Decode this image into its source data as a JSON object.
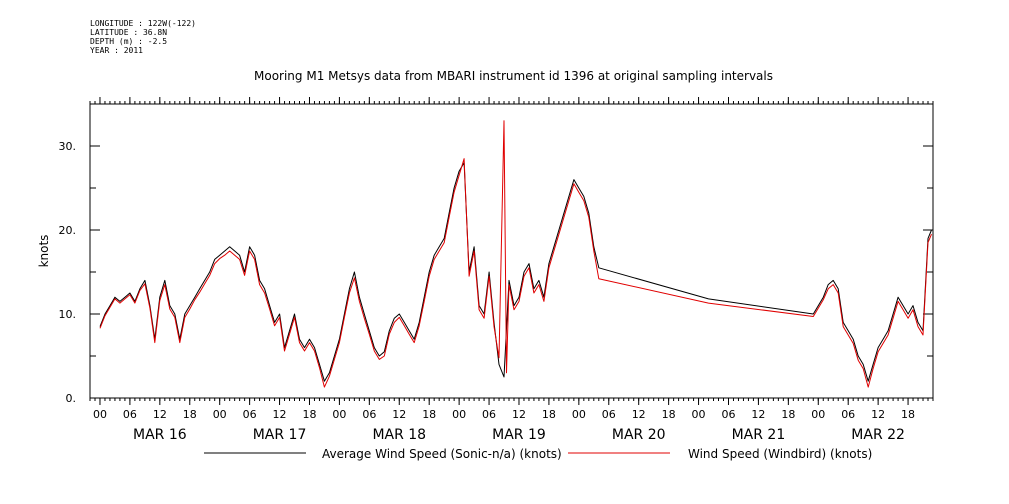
{
  "metadata": {
    "longitude": "LONGITUDE : 122W(-122)",
    "latitude": "LATITUDE : 36.8N",
    "depth": "DEPTH (m) : -2.5",
    "year": "YEAR : 2011"
  },
  "chart_data": {
    "type": "line",
    "title": "Mooring M1 Metsys data from MBARI instrument id 1396 at original sampling intervals",
    "ylabel": "knots",
    "xlabel": "",
    "ylim": [
      0,
      35
    ],
    "xlim_hours": [
      -2,
      167
    ],
    "yticks": [
      0,
      10,
      20,
      30
    ],
    "ytick_labels": [
      "0.",
      "10.",
      "20.",
      "30."
    ],
    "hour_ticks": [
      "00",
      "06",
      "12",
      "18",
      "00",
      "06",
      "12",
      "18",
      "00",
      "06",
      "12",
      "18",
      "00",
      "06",
      "12",
      "18",
      "00",
      "06",
      "12",
      "18",
      "00",
      "06",
      "12",
      "18",
      "00",
      "06",
      "12",
      "18"
    ],
    "day_labels": [
      "MAR 16",
      "MAR 17",
      "MAR 18",
      "MAR 19",
      "MAR 20",
      "MAR 21",
      "MAR 22"
    ],
    "legend": "bottom",
    "series": [
      {
        "name": "Average Wind Speed (Sonic-n/a) (knots)",
        "color": "#000000",
        "points": [
          [
            0,
            8.5
          ],
          [
            1,
            10
          ],
          [
            2,
            11
          ],
          [
            3,
            12
          ],
          [
            4,
            11.5
          ],
          [
            5,
            12
          ],
          [
            6,
            12.5
          ],
          [
            7,
            11.5
          ],
          [
            8,
            13
          ],
          [
            9,
            14
          ],
          [
            10,
            11
          ],
          [
            11,
            7
          ],
          [
            12,
            12
          ],
          [
            13,
            14
          ],
          [
            14,
            11
          ],
          [
            15,
            10
          ],
          [
            16,
            7
          ],
          [
            17,
            10
          ],
          [
            18,
            11
          ],
          [
            19,
            12
          ],
          [
            20,
            13
          ],
          [
            21,
            14
          ],
          [
            22,
            15
          ],
          [
            23,
            16.5
          ],
          [
            24,
            17
          ],
          [
            25,
            17.5
          ],
          [
            26,
            18
          ],
          [
            27,
            17.5
          ],
          [
            28,
            17
          ],
          [
            29,
            15
          ],
          [
            30,
            18
          ],
          [
            31,
            17
          ],
          [
            32,
            14
          ],
          [
            33,
            13
          ],
          [
            34,
            11
          ],
          [
            35,
            9
          ],
          [
            36,
            10
          ],
          [
            37,
            6
          ],
          [
            38,
            8
          ],
          [
            39,
            10
          ],
          [
            40,
            7
          ],
          [
            41,
            6
          ],
          [
            42,
            7
          ],
          [
            43,
            6
          ],
          [
            44,
            4
          ],
          [
            45,
            2
          ],
          [
            46,
            3
          ],
          [
            47,
            5
          ],
          [
            48,
            7
          ],
          [
            49,
            10
          ],
          [
            50,
            13
          ],
          [
            51,
            15
          ],
          [
            52,
            12
          ],
          [
            53,
            10
          ],
          [
            54,
            8
          ],
          [
            55,
            6
          ],
          [
            56,
            5
          ],
          [
            57,
            5.5
          ],
          [
            58,
            8
          ],
          [
            59,
            9.5
          ],
          [
            60,
            10
          ],
          [
            61,
            9
          ],
          [
            62,
            8
          ],
          [
            63,
            7
          ],
          [
            64,
            9
          ],
          [
            65,
            12
          ],
          [
            66,
            15
          ],
          [
            67,
            17
          ],
          [
            68,
            18
          ],
          [
            69,
            19
          ],
          [
            70,
            22
          ],
          [
            71,
            25
          ],
          [
            72,
            27
          ],
          [
            73,
            28
          ],
          [
            74,
            15
          ],
          [
            75,
            18
          ],
          [
            76,
            11
          ],
          [
            77,
            10
          ],
          [
            78,
            15
          ],
          [
            79,
            9
          ],
          [
            80,
            4
          ],
          [
            81,
            2.5
          ],
          [
            82,
            14
          ],
          [
            83,
            11
          ],
          [
            84,
            12
          ],
          [
            85,
            15
          ],
          [
            86,
            16
          ],
          [
            87,
            13
          ],
          [
            88,
            14
          ],
          [
            89,
            12
          ],
          [
            90,
            16
          ],
          [
            91,
            18
          ],
          [
            92,
            20
          ],
          [
            93,
            22
          ],
          [
            94,
            24
          ],
          [
            95,
            26
          ],
          [
            96,
            25
          ],
          [
            97,
            24
          ],
          [
            98,
            22
          ],
          [
            99,
            18
          ],
          [
            100,
            15.5
          ],
          [
            122,
            11.8
          ],
          [
            143,
            10
          ],
          [
            144,
            11
          ],
          [
            145,
            12
          ],
          [
            146,
            13.5
          ],
          [
            147,
            14
          ],
          [
            148,
            13
          ],
          [
            149,
            9
          ],
          [
            150,
            8
          ],
          [
            151,
            7
          ],
          [
            152,
            5
          ],
          [
            153,
            4
          ],
          [
            154,
            2
          ],
          [
            155,
            4
          ],
          [
            156,
            6
          ],
          [
            157,
            7
          ],
          [
            158,
            8
          ],
          [
            159,
            10
          ],
          [
            160,
            12
          ],
          [
            161,
            11
          ],
          [
            162,
            10
          ],
          [
            163,
            11
          ],
          [
            164,
            9
          ],
          [
            165,
            8
          ],
          [
            166,
            19
          ],
          [
            166.7,
            20
          ]
        ]
      },
      {
        "name": "Wind Speed (Windbird) (knots)",
        "color": "#e00000",
        "points": [
          [
            0,
            8.3
          ],
          [
            1,
            9.8
          ],
          [
            2,
            10.8
          ],
          [
            3,
            11.8
          ],
          [
            4,
            11.3
          ],
          [
            5,
            11.8
          ],
          [
            6,
            12.3
          ],
          [
            7,
            11.3
          ],
          [
            8,
            12.8
          ],
          [
            9,
            13.6
          ],
          [
            10,
            10.7
          ],
          [
            11,
            6.6
          ],
          [
            12,
            11.6
          ],
          [
            13,
            13.5
          ],
          [
            14,
            10.6
          ],
          [
            15,
            9.6
          ],
          [
            16,
            6.6
          ],
          [
            17,
            9.6
          ],
          [
            18,
            10.6
          ],
          [
            19,
            11.7
          ],
          [
            20,
            12.6
          ],
          [
            21,
            13.6
          ],
          [
            22,
            14.6
          ],
          [
            23,
            16
          ],
          [
            24,
            16.6
          ],
          [
            25,
            17
          ],
          [
            26,
            17.5
          ],
          [
            27,
            17
          ],
          [
            28,
            16.5
          ],
          [
            29,
            14.6
          ],
          [
            30,
            17.5
          ],
          [
            31,
            16.5
          ],
          [
            32,
            13.5
          ],
          [
            33,
            12.5
          ],
          [
            34,
            10.6
          ],
          [
            35,
            8.6
          ],
          [
            36,
            9.6
          ],
          [
            37,
            5.6
          ],
          [
            38,
            7.6
          ],
          [
            39,
            9.6
          ],
          [
            40,
            6.6
          ],
          [
            41,
            5.6
          ],
          [
            42,
            6.6
          ],
          [
            43,
            5.6
          ],
          [
            44,
            3.6
          ],
          [
            45,
            1.3
          ],
          [
            46,
            2.6
          ],
          [
            47,
            4.6
          ],
          [
            48,
            6.6
          ],
          [
            49,
            9.6
          ],
          [
            50,
            12.5
          ],
          [
            51,
            14.3
          ],
          [
            52,
            11.5
          ],
          [
            53,
            9.5
          ],
          [
            54,
            7.6
          ],
          [
            55,
            5.6
          ],
          [
            56,
            4.6
          ],
          [
            57,
            5
          ],
          [
            58,
            7.6
          ],
          [
            59,
            9
          ],
          [
            60,
            9.6
          ],
          [
            61,
            8.6
          ],
          [
            62,
            7.6
          ],
          [
            63,
            6.6
          ],
          [
            64,
            8.6
          ],
          [
            65,
            11.5
          ],
          [
            66,
            14.5
          ],
          [
            67,
            16.5
          ],
          [
            68,
            17.5
          ],
          [
            69,
            18.5
          ],
          [
            70,
            21.5
          ],
          [
            71,
            24.5
          ],
          [
            72,
            26.5
          ],
          [
            73,
            28.5
          ],
          [
            74,
            14.5
          ],
          [
            75,
            17.5
          ],
          [
            76,
            10.5
          ],
          [
            77,
            9.5
          ],
          [
            78,
            14.5
          ],
          [
            79,
            8.5
          ],
          [
            80,
            4.8
          ],
          [
            81,
            33
          ],
          [
            81.5,
            3
          ],
          [
            82,
            13.5
          ],
          [
            83,
            10.5
          ],
          [
            84,
            11.5
          ],
          [
            85,
            14.5
          ],
          [
            86,
            15.5
          ],
          [
            87,
            12.5
          ],
          [
            88,
            13.5
          ],
          [
            89,
            11.5
          ],
          [
            90,
            15.5
          ],
          [
            91,
            17.5
          ],
          [
            92,
            19.5
          ],
          [
            93,
            21.5
          ],
          [
            94,
            23.5
          ],
          [
            95,
            25.5
          ],
          [
            96,
            24.5
          ],
          [
            97,
            23.5
          ],
          [
            98,
            21.5
          ],
          [
            99,
            17.5
          ],
          [
            100,
            14.2
          ],
          [
            122,
            11.3
          ],
          [
            143,
            9.7
          ],
          [
            144,
            10.7
          ],
          [
            145,
            11.7
          ],
          [
            146,
            13
          ],
          [
            147,
            13.5
          ],
          [
            148,
            12.5
          ],
          [
            149,
            8.5
          ],
          [
            150,
            7.5
          ],
          [
            151,
            6.5
          ],
          [
            152,
            4.5
          ],
          [
            153,
            3.5
          ],
          [
            154,
            1.3
          ],
          [
            155,
            3.5
          ],
          [
            156,
            5.5
          ],
          [
            157,
            6.5
          ],
          [
            158,
            7.5
          ],
          [
            159,
            9.5
          ],
          [
            160,
            11.5
          ],
          [
            161,
            10.5
          ],
          [
            162,
            9.5
          ],
          [
            163,
            10.5
          ],
          [
            164,
            8.5
          ],
          [
            165,
            7.5
          ],
          [
            166,
            18.5
          ],
          [
            166.7,
            19.5
          ]
        ]
      }
    ]
  }
}
